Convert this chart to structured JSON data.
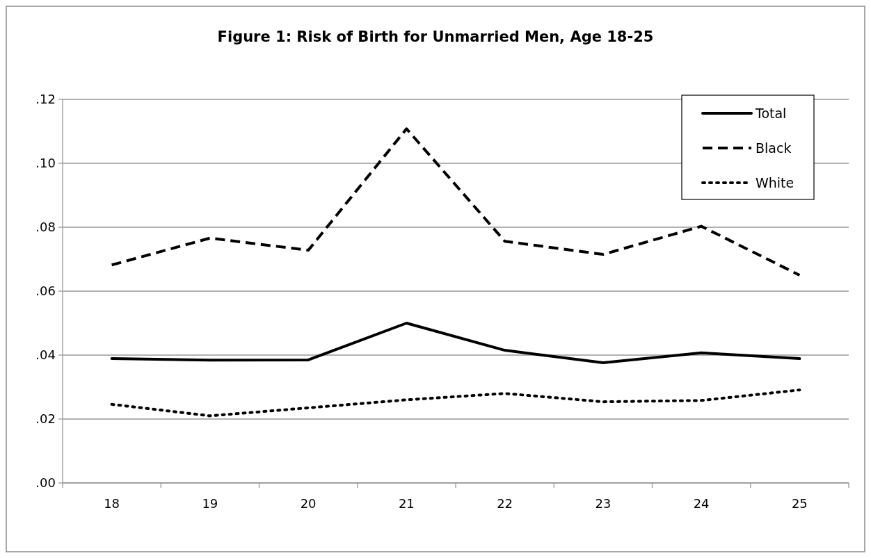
{
  "chart_data": {
    "type": "line",
    "title": "Figure 1: Risk of Birth for Unmarried Men, Age 18-25",
    "categories": [
      "18",
      "19",
      "20",
      "21",
      "22",
      "23",
      "24",
      "25"
    ],
    "series": [
      {
        "name": "Total",
        "color": "#000000",
        "line_style": "solid",
        "values": [
          0.0389,
          0.0384,
          0.0385,
          0.05,
          0.0415,
          0.0376,
          0.0407,
          0.0389
        ]
      },
      {
        "name": "Black",
        "color": "#000000",
        "line_style": "dashed",
        "values": [
          0.0682,
          0.0766,
          0.0728,
          0.1108,
          0.0756,
          0.0715,
          0.0803,
          0.065
        ]
      },
      {
        "name": "White",
        "color": "#000000",
        "line_style": "dotted",
        "values": [
          0.0246,
          0.021,
          0.0235,
          0.026,
          0.028,
          0.0254,
          0.0258,
          0.0291
        ]
      }
    ],
    "ylim": [
      0,
      0.12
    ],
    "yticks": [
      {
        "value": 0,
        "label": ".00"
      },
      {
        "value": 0.02,
        "label": ".02"
      },
      {
        "value": 0.04,
        "label": ".04"
      },
      {
        "value": 0.06,
        "label": ".06"
      },
      {
        "value": 0.08,
        "label": ".08"
      },
      {
        "value": 0.1,
        "label": ".10"
      },
      {
        "value": 0.12,
        "label": ".12"
      }
    ],
    "grid": "y",
    "legend": "top right",
    "marker": "none"
  }
}
